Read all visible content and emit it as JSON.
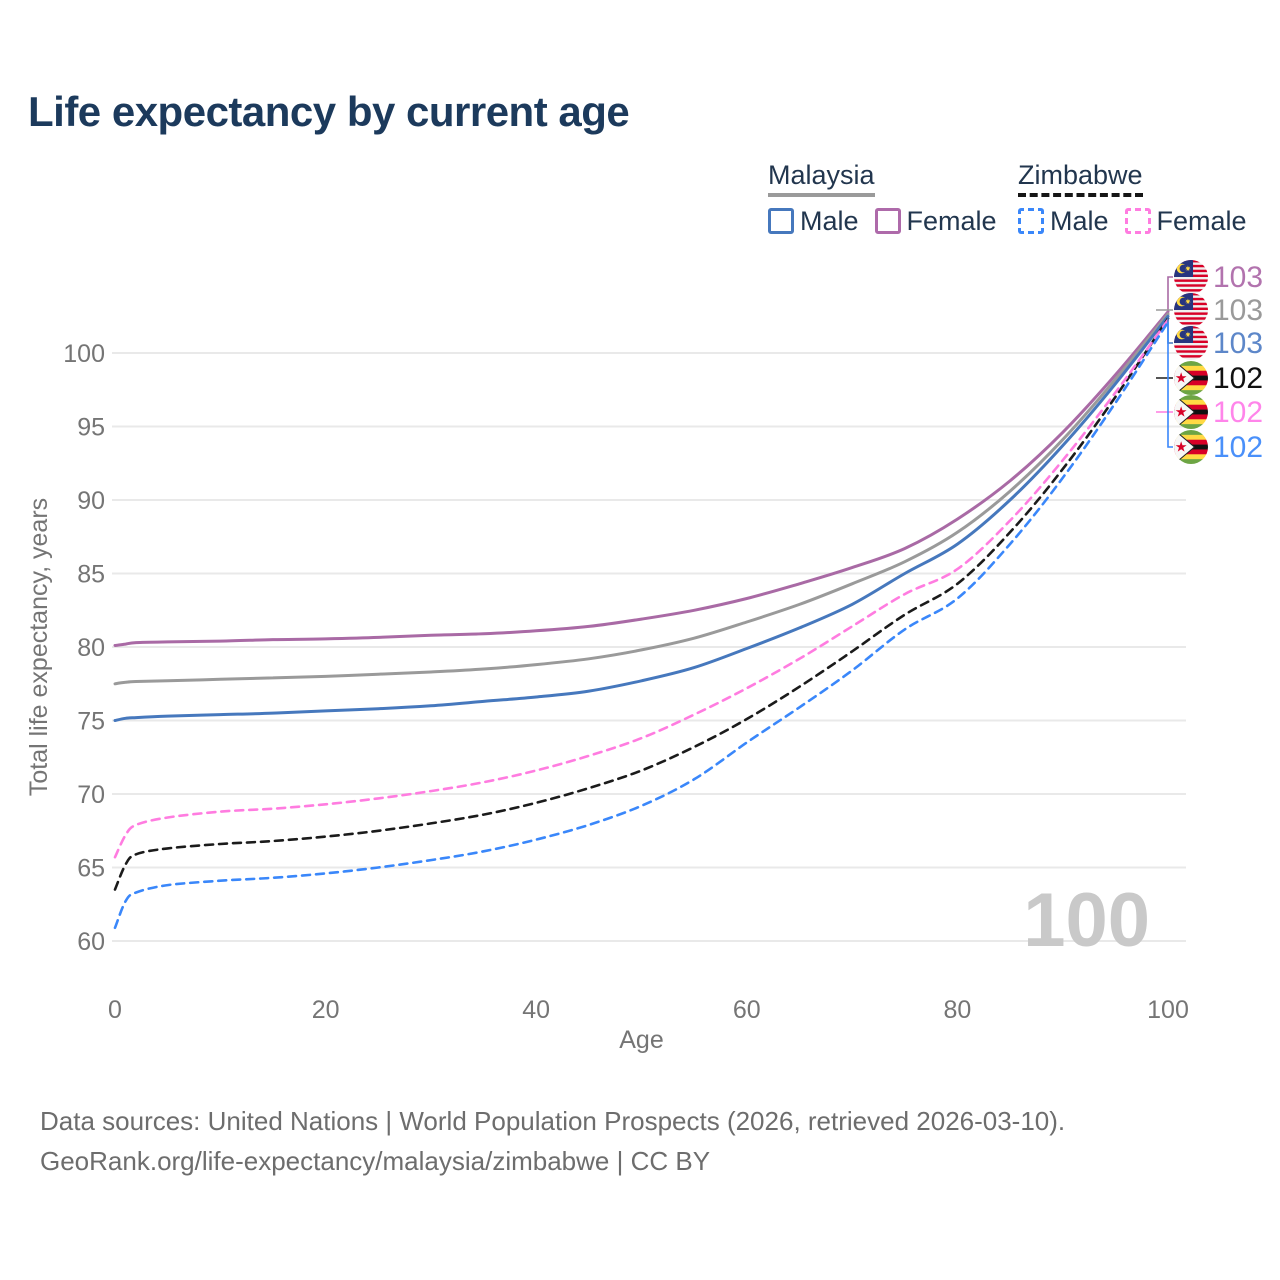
{
  "title": "Life expectancy by current age",
  "legend": {
    "groups": [
      {
        "label": "Malaysia",
        "line_style": "solid",
        "underline_color": "#9a9a9a",
        "items": [
          {
            "label": "Male",
            "color": "#4678bd"
          },
          {
            "label": "Female",
            "color": "#ae6aaa"
          }
        ]
      },
      {
        "label": "Zimbabwe",
        "line_style": "dashed",
        "underline_color": "#161616",
        "items": [
          {
            "label": "Male",
            "color": "#3a87fa"
          },
          {
            "label": "Female",
            "color": "#ff7ce0"
          }
        ]
      }
    ]
  },
  "chart_data": {
    "type": "line",
    "title": "Life expectancy by current age",
    "xlabel": "Age",
    "ylabel": "Total life expectancy, years",
    "xticks": [
      0,
      20,
      40,
      60,
      80,
      100
    ],
    "yticks": [
      60,
      65,
      70,
      75,
      80,
      85,
      90,
      95,
      100
    ],
    "xlim": [
      0,
      100
    ],
    "ylim": [
      60,
      100
    ],
    "grid": "horizontal",
    "legend_position": "top-right",
    "watermark": "100",
    "x": [
      0,
      1,
      2,
      5,
      10,
      15,
      20,
      25,
      30,
      35,
      40,
      45,
      50,
      55,
      60,
      65,
      70,
      75,
      80,
      85,
      90,
      95,
      100
    ],
    "series": [
      {
        "name": "Malaysia Female",
        "country": "Malaysia",
        "sex": "Female",
        "color": "#a96aa5",
        "label_color": "#b273ae",
        "dashed": false,
        "flag": "malaysia-flag-icon",
        "end_label": "103",
        "slot": 0,
        "connector": "elbow",
        "values": [
          80.1,
          80.2,
          80.3,
          80.35,
          80.4,
          80.5,
          80.55,
          80.65,
          80.8,
          80.9,
          81.1,
          81.4,
          81.9,
          82.5,
          83.3,
          84.3,
          85.4,
          86.7,
          88.7,
          91.3,
          94.6,
          98.5,
          102.8
        ]
      },
      {
        "name": "Malaysia Total",
        "country": "Malaysia",
        "sex": "Both",
        "color": "#9a9a9a",
        "label_color": "#9a9a9a",
        "dashed": false,
        "flag": "malaysia-flag-icon",
        "end_label": "103",
        "slot": 1,
        "connector": "tick",
        "values": [
          77.5,
          77.6,
          77.65,
          77.7,
          77.8,
          77.9,
          78.0,
          78.15,
          78.3,
          78.5,
          78.8,
          79.2,
          79.8,
          80.6,
          81.7,
          82.9,
          84.3,
          85.8,
          87.8,
          90.6,
          94.1,
          98.2,
          102.65
        ]
      },
      {
        "name": "Malaysia Male",
        "country": "Malaysia",
        "sex": "Male",
        "color": "#4678bd",
        "label_color": "#5d87c9",
        "dashed": false,
        "flag": "malaysia-flag-icon",
        "end_label": "103",
        "slot": 2,
        "connector": "elbow",
        "values": [
          75.0,
          75.15,
          75.2,
          75.3,
          75.4,
          75.5,
          75.65,
          75.8,
          76.0,
          76.3,
          76.6,
          77.0,
          77.7,
          78.6,
          79.9,
          81.3,
          82.9,
          85.0,
          87.0,
          90.0,
          93.7,
          97.9,
          102.5
        ]
      },
      {
        "name": "Zimbabwe Total",
        "country": "Zimbabwe",
        "sex": "Both",
        "color": "#1b1b1b",
        "label_color": "#111111",
        "dashed": true,
        "flag": "zimbabwe-flag-icon",
        "end_label": "102",
        "slot": 3,
        "connector": "tick",
        "values": [
          63.5,
          65.2,
          65.9,
          66.3,
          66.6,
          66.8,
          67.1,
          67.5,
          68.0,
          68.6,
          69.4,
          70.4,
          71.6,
          73.2,
          75.1,
          77.3,
          79.7,
          82.2,
          84.3,
          87.8,
          92.1,
          97.0,
          102.35
        ]
      },
      {
        "name": "Zimbabwe Female",
        "country": "Zimbabwe",
        "sex": "Female",
        "color": "#ff7ce0",
        "label_color": "#ff85ea",
        "dashed": true,
        "flag": "zimbabwe-flag-icon",
        "end_label": "102",
        "slot": 4,
        "connector": "tick",
        "values": [
          65.7,
          67.2,
          67.9,
          68.4,
          68.8,
          69.0,
          69.3,
          69.7,
          70.2,
          70.8,
          71.6,
          72.6,
          73.8,
          75.4,
          77.2,
          79.2,
          81.4,
          83.6,
          85.3,
          88.6,
          92.7,
          97.3,
          102.25
        ]
      },
      {
        "name": "Zimbabwe Male",
        "country": "Zimbabwe",
        "sex": "Male",
        "color": "#3a87fa",
        "label_color": "#4a90fa",
        "dashed": true,
        "flag": "zimbabwe-flag-icon",
        "end_label": "102",
        "slot": 5,
        "connector": "elbow",
        "values": [
          60.9,
          62.7,
          63.3,
          63.8,
          64.1,
          64.3,
          64.6,
          65.0,
          65.5,
          66.1,
          66.9,
          67.9,
          69.2,
          71.0,
          73.5,
          75.9,
          78.4,
          81.2,
          83.3,
          87.0,
          91.5,
          96.6,
          102.1
        ]
      }
    ]
  },
  "footer": {
    "line1": "Data sources: United Nations | World Population Prospects (2026, retrieved 2026-03-10).",
    "line2": "GeoRank.org/life-expectancy/malaysia/zimbabwe | CC BY"
  },
  "colors": {
    "title_text": "#1c3a5c",
    "legend_text": "#22364e",
    "axis_text": "#757575",
    "gridline": "#e9e9e9",
    "watermark": "#c9c9c9",
    "footer_text": "#6d6d6d"
  }
}
